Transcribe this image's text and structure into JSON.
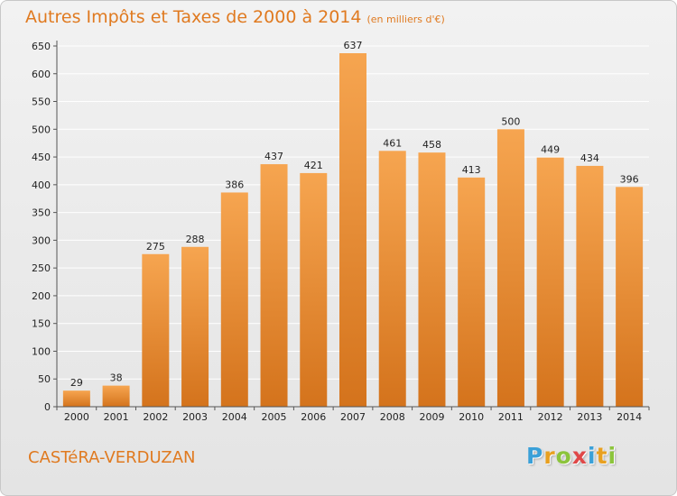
{
  "chart_data": {
    "type": "bar",
    "title": "Autres Impôts et Taxes de 2000 à 2014",
    "unit_label": "(en milliers d'€)",
    "categories": [
      "2000",
      "2001",
      "2002",
      "2003",
      "2004",
      "2005",
      "2006",
      "2007",
      "2008",
      "2009",
      "2010",
      "2011",
      "2012",
      "2013",
      "2014"
    ],
    "values": [
      29,
      38,
      275,
      288,
      386,
      437,
      421,
      637,
      461,
      458,
      413,
      500,
      449,
      434,
      396
    ],
    "data_labels": [
      "29",
      "38",
      "275",
      "288",
      "386",
      "437",
      "421",
      "637",
      "461",
      "458",
      "413",
      "500",
      "449",
      "434",
      "396"
    ],
    "ylim": [
      0,
      650
    ],
    "yticks": [
      0,
      50,
      100,
      150,
      200,
      250,
      300,
      350,
      400,
      450,
      500,
      550,
      600,
      650
    ],
    "grid": true,
    "bar_color_top": "#f6a550",
    "bar_color_bottom": "#d4731c",
    "grid_color": "#ffffff"
  },
  "footer": {
    "town": "CASTéRA-VERDUZAN"
  },
  "logo": {
    "text": "Proxiti",
    "letters": [
      {
        "ch": "P",
        "color": "#3aa0d8"
      },
      {
        "ch": "r",
        "color": "#e8a020"
      },
      {
        "ch": "o",
        "color": "#8cc43c"
      },
      {
        "ch": "x",
        "color": "#e04848"
      },
      {
        "ch": "i",
        "color": "#3aa0d8"
      },
      {
        "ch": "t",
        "color": "#e8a020"
      },
      {
        "ch": "i",
        "color": "#8cc43c"
      }
    ]
  }
}
